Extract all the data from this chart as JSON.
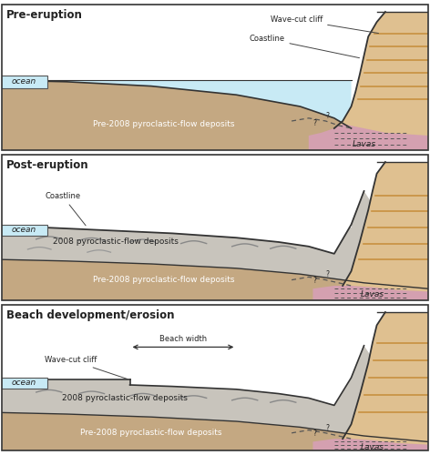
{
  "colors": {
    "ocean": "#c8eaf5",
    "pre2008": "#c4a882",
    "new2008": "#c8c4bc",
    "lavas": "#d4a0b0",
    "cliff": "#dfc090",
    "bg": "#ffffff",
    "border": "#333333",
    "hatch": "#c89040",
    "dash_line": "#555555",
    "text_dark": "#222222",
    "text_white": "#ffffff",
    "text_gray": "#555555",
    "wave": "#888888"
  },
  "panel_titles": [
    "Pre-eruption",
    "Post-eruption",
    "Beach development/erosion"
  ]
}
